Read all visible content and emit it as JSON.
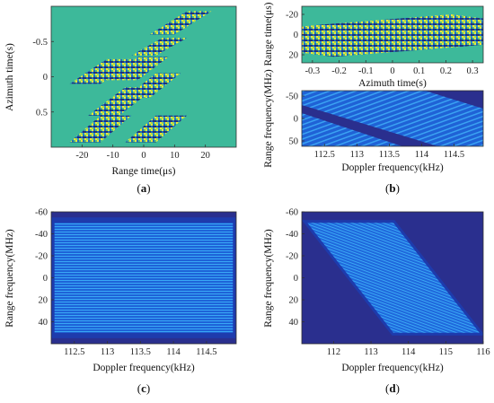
{
  "colors": {
    "plot_a_bg": "#3db99a",
    "noise": [
      "#f2e73a",
      "#2a8fd0",
      "#1c2e84",
      "#55c27e",
      "#a6d94b",
      "#1f6eb8",
      "#7fcf6a",
      "#26366f"
    ],
    "spectrum_bg": "#2a2f8e",
    "spectrum_fill": "#1d5fd4",
    "spectrum_fill_light": "#2a7fe8",
    "spectrum_stripe": "#36a3f2"
  },
  "chart_data": [
    {
      "id": "a",
      "type": "heatmap",
      "caption_letter": "a",
      "xlabel": "Range time(μs)",
      "ylabel": "Azimuth time(s)",
      "xticks": [
        "-20",
        "-10",
        "0",
        "10",
        "20"
      ],
      "xtick_values": [
        -20,
        -10,
        0,
        10,
        20
      ],
      "yticks": [
        "-0.5",
        "0",
        "0.5"
      ],
      "ytick_values": [
        -0.5,
        0,
        0.5
      ],
      "xlim": [
        -30,
        30
      ],
      "ylim": [
        -1,
        1
      ],
      "y_reversed": true,
      "content": "sheared parallelogram echo strips on flat background",
      "strips": [
        {
          "x": [
            [
              14,
              -0.93
            ],
            [
              22,
              -0.93
            ],
            [
              10,
              -0.6
            ],
            [
              2,
              -0.6
            ]
          ]
        },
        {
          "x": [
            [
              6,
              -0.55
            ],
            [
              14,
              -0.55
            ],
            [
              4,
              -0.3
            ],
            [
              -4,
              -0.3
            ]
          ]
        },
        {
          "x": [
            [
              -2,
              -0.28
            ],
            [
              8,
              -0.28
            ],
            [
              -2,
              0.05
            ],
            [
              -12,
              0.05
            ]
          ]
        },
        {
          "x": [
            [
              -12,
              -0.25
            ],
            [
              -2,
              -0.25
            ],
            [
              -14,
              0.1
            ],
            [
              -24,
              0.1
            ]
          ]
        },
        {
          "x": [
            [
              4,
              -0.05
            ],
            [
              12,
              -0.05
            ],
            [
              2,
              0.3
            ],
            [
              -6,
              0.3
            ]
          ]
        },
        {
          "x": [
            [
              -6,
              0.15
            ],
            [
              4,
              0.15
            ],
            [
              -8,
              0.55
            ],
            [
              -18,
              0.55
            ]
          ]
        },
        {
          "x": [
            [
              -14,
              0.55
            ],
            [
              -4,
              0.55
            ],
            [
              -14,
              0.93
            ],
            [
              -24,
              0.93
            ]
          ]
        },
        {
          "x": [
            [
              4,
              0.55
            ],
            [
              14,
              0.55
            ],
            [
              4,
              0.93
            ],
            [
              -6,
              0.93
            ]
          ]
        }
      ]
    },
    {
      "id": "b_top",
      "type": "heatmap",
      "caption_letter": "b",
      "xlabel": "Azimuth time(s)",
      "ylabel": "Range time(μs)",
      "xticks": [
        "-0.3",
        "-0.2",
        "-0.1",
        "0",
        "0.1",
        "0.2",
        "0.3"
      ],
      "xtick_values": [
        -0.3,
        -0.2,
        -0.1,
        0,
        0.1,
        0.2,
        0.3
      ],
      "yticks": [
        "-20",
        "0",
        "20"
      ],
      "ytick_values": [
        -20,
        0,
        20
      ],
      "xlim": [
        -0.34,
        0.34
      ],
      "ylim": [
        -28,
        28
      ],
      "y_reversed": true,
      "content": "horizontal echo band with slight slope",
      "band": [
        [
          -0.34,
          -8
        ],
        [
          -0.26,
          -10
        ],
        [
          0.22,
          -20
        ],
        [
          0.34,
          -16
        ],
        [
          0.34,
          10
        ],
        [
          0.26,
          12
        ],
        [
          -0.22,
          22
        ],
        [
          -0.34,
          18
        ]
      ]
    },
    {
      "id": "b_bottom",
      "type": "heatmap",
      "xlabel": "Doppler frequency(kHz)",
      "ylabel": "Range frequency(MHz)",
      "xticks": [
        "112.5",
        "113",
        "113.5",
        "114",
        "114.5"
      ],
      "xtick_values": [
        112.5,
        113,
        113.5,
        114,
        114.5
      ],
      "yticks": [
        "-50",
        "0",
        "50"
      ],
      "ytick_values": [
        -50,
        0,
        50
      ],
      "xlim": [
        112.15,
        114.95
      ],
      "ylim": [
        -62,
        62
      ],
      "y_reversed": true,
      "content": "spectrum with two diagonal dark gaps"
    },
    {
      "id": "c",
      "type": "heatmap",
      "caption_letter": "c",
      "xlabel": "Doppler frequency(kHz)",
      "ylabel": "Range frequency(MHz)",
      "xticks": [
        "112.5",
        "113",
        "113.5",
        "114",
        "114.5"
      ],
      "xtick_values": [
        112.5,
        113,
        113.5,
        114,
        114.5
      ],
      "yticks": [
        "-60",
        "-40",
        "-20",
        "0",
        "20",
        "40"
      ],
      "ytick_values": [
        -60,
        -40,
        -20,
        0,
        20,
        40
      ],
      "xlim": [
        112.15,
        114.95
      ],
      "ylim": [
        -60,
        60
      ],
      "y_reversed": true,
      "content": "rectangular spectrum support",
      "support": {
        "x": [
          112.2,
          114.9
        ],
        "y": [
          -50,
          50
        ]
      }
    },
    {
      "id": "d",
      "type": "heatmap",
      "caption_letter": "d",
      "xlabel": "Doppler frequency(kHz)",
      "ylabel": "Range frequency(MHz)",
      "xticks": [
        "112",
        "113",
        "114",
        "115",
        "116"
      ],
      "xtick_values": [
        112,
        113,
        114,
        115,
        116
      ],
      "yticks": [
        "-60",
        "-40",
        "-20",
        "0",
        "20",
        "40"
      ],
      "ytick_values": [
        -60,
        -40,
        -20,
        0,
        20,
        40
      ],
      "xlim": [
        111.15,
        116.0
      ],
      "ylim": [
        -60,
        60
      ],
      "y_reversed": true,
      "content": "sheared parallelogram spectrum support",
      "support": [
        [
          111.3,
          -50
        ],
        [
          113.6,
          -50
        ],
        [
          115.9,
          50
        ],
        [
          113.6,
          50
        ]
      ]
    }
  ]
}
